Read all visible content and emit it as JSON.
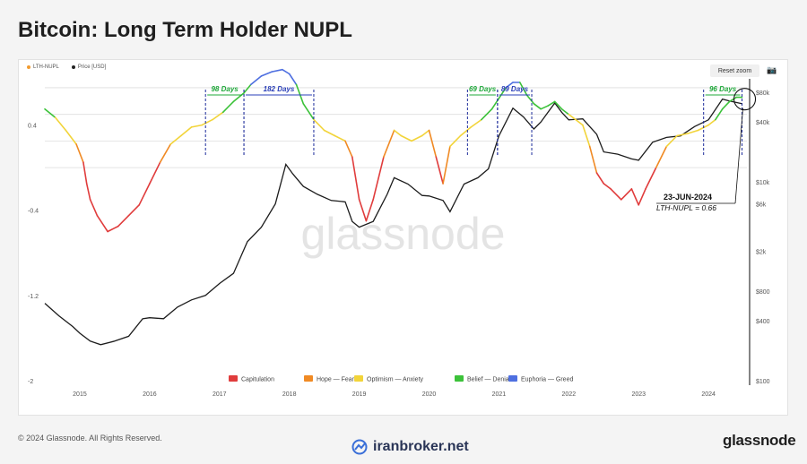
{
  "page": {
    "title": "Bitcoin: Long Term Holder NUPL",
    "copyright": "© 2024 Glassnode. All Rights Reserved.",
    "site": "iranbroker.net",
    "brand": "glassnode",
    "watermark": "glassnode"
  },
  "toolbar": {
    "reset_zoom": "Reset zoom",
    "camera_icon": "camera-icon"
  },
  "chart_data": {
    "type": "line",
    "title": "Bitcoin: Long Term Holder NUPL",
    "legend_top": [
      {
        "name": "LTH-NUPL",
        "color": "#f29b30"
      },
      {
        "name": "Price [USD]",
        "color": "#222222"
      }
    ],
    "x_ticks": [
      "2015",
      "2016",
      "2017",
      "2018",
      "2019",
      "2020",
      "2021",
      "2022",
      "2023",
      "2024"
    ],
    "x_tick_years": [
      2015,
      2016,
      2017,
      2018,
      2019,
      2020,
      2021,
      2022,
      2023,
      2024
    ],
    "x_range": [
      2014.5,
      2024.55
    ],
    "y_left": {
      "ticks": [
        "0.4",
        "-0.4",
        "-1.2",
        "-2"
      ],
      "values": [
        0.4,
        -0.4,
        -1.2,
        -2
      ],
      "range": [
        -2,
        0.8
      ]
    },
    "y_right": {
      "scale": "log",
      "ticks": [
        "$80k",
        "$40k",
        "$10k",
        "$6k",
        "$2k",
        "$800",
        "$400",
        "$100"
      ],
      "values": [
        80000,
        40000,
        10000,
        6000,
        2000,
        800,
        400,
        100
      ],
      "range": [
        100,
        100000
      ]
    },
    "zones": [
      {
        "name": "Capitulation",
        "color": "#e03c3c"
      },
      {
        "name": "Hope — Fear",
        "color": "#f08a24"
      },
      {
        "name": "Optimism — Anxiety",
        "color": "#f2d43a"
      },
      {
        "name": "Belief — Denial",
        "color": "#3cc23a"
      },
      {
        "name": "Euphoria — Greed",
        "color": "#4e6fe0"
      }
    ],
    "zone_thresholds": [
      0,
      0.25,
      0.5,
      0.75
    ],
    "nupl_series": {
      "name": "LTH-NUPL",
      "x": [
        2014.5,
        2014.65,
        2014.8,
        2014.95,
        2015.05,
        2015.1,
        2015.15,
        2015.25,
        2015.4,
        2015.55,
        2015.7,
        2015.85,
        2016.0,
        2016.15,
        2016.3,
        2016.45,
        2016.6,
        2016.75,
        2016.9,
        2017.05,
        2017.2,
        2017.35,
        2017.45,
        2017.6,
        2017.75,
        2017.9,
        2018.0,
        2018.1,
        2018.2,
        2018.35,
        2018.5,
        2018.65,
        2018.8,
        2018.9,
        2019.0,
        2019.1,
        2019.2,
        2019.35,
        2019.5,
        2019.6,
        2019.75,
        2019.9,
        2020.0,
        2020.1,
        2020.2,
        2020.3,
        2020.45,
        2020.6,
        2020.75,
        2020.9,
        2021.0,
        2021.1,
        2021.2,
        2021.3,
        2021.4,
        2021.5,
        2021.6,
        2021.7,
        2021.8,
        2021.9,
        2022.0,
        2022.1,
        2022.2,
        2022.3,
        2022.4,
        2022.5,
        2022.6,
        2022.75,
        2022.9,
        2023.0,
        2023.1,
        2023.25,
        2023.4,
        2023.55,
        2023.7,
        2023.85,
        2024.0,
        2024.1,
        2024.2,
        2024.3,
        2024.4,
        2024.48
      ],
      "y": [
        0.55,
        0.47,
        0.35,
        0.22,
        0.05,
        -0.15,
        -0.3,
        -0.45,
        -0.6,
        -0.55,
        -0.45,
        -0.35,
        -0.15,
        0.05,
        0.22,
        0.3,
        0.38,
        0.4,
        0.45,
        0.52,
        0.62,
        0.7,
        0.78,
        0.86,
        0.9,
        0.92,
        0.88,
        0.78,
        0.6,
        0.45,
        0.35,
        0.3,
        0.25,
        0.1,
        -0.3,
        -0.5,
        -0.3,
        0.1,
        0.35,
        0.3,
        0.25,
        0.3,
        0.35,
        0.1,
        -0.15,
        0.2,
        0.3,
        0.38,
        0.45,
        0.55,
        0.65,
        0.75,
        0.8,
        0.8,
        0.68,
        0.6,
        0.55,
        0.58,
        0.62,
        0.55,
        0.5,
        0.45,
        0.4,
        0.2,
        -0.05,
        -0.15,
        -0.2,
        -0.3,
        -0.2,
        -0.35,
        -0.2,
        0.0,
        0.2,
        0.3,
        0.32,
        0.35,
        0.4,
        0.45,
        0.55,
        0.62,
        0.66,
        0.66
      ]
    },
    "price_series": {
      "name": "Price [USD]",
      "x": [
        2014.5,
        2014.7,
        2014.9,
        2015.0,
        2015.15,
        2015.3,
        2015.5,
        2015.7,
        2015.9,
        2016.0,
        2016.2,
        2016.4,
        2016.6,
        2016.8,
        2017.0,
        2017.2,
        2017.4,
        2017.6,
        2017.8,
        2017.95,
        2018.05,
        2018.2,
        2018.4,
        2018.6,
        2018.8,
        2018.9,
        2019.0,
        2019.2,
        2019.4,
        2019.5,
        2019.7,
        2019.9,
        2020.0,
        2020.2,
        2020.3,
        2020.5,
        2020.7,
        2020.85,
        2021.0,
        2021.2,
        2021.35,
        2021.5,
        2021.6,
        2021.8,
        2021.9,
        2022.0,
        2022.2,
        2022.4,
        2022.5,
        2022.7,
        2022.9,
        2023.0,
        2023.2,
        2023.4,
        2023.6,
        2023.8,
        2024.0,
        2024.2,
        2024.3,
        2024.48
      ],
      "y": [
        600,
        450,
        350,
        300,
        250,
        230,
        250,
        280,
        420,
        430,
        420,
        550,
        650,
        720,
        950,
        1200,
        2500,
        3500,
        6000,
        15000,
        12000,
        9000,
        7500,
        6500,
        6300,
        4000,
        3500,
        4000,
        7500,
        11000,
        9500,
        7300,
        7200,
        6500,
        5000,
        9500,
        11000,
        13500,
        29000,
        55000,
        45000,
        34000,
        40000,
        62000,
        50000,
        42000,
        43000,
        30000,
        20000,
        19000,
        17000,
        16500,
        25000,
        28000,
        29000,
        36000,
        42000,
        68000,
        65000,
        61000
      ]
    },
    "annotations": {
      "spans": [
        {
          "label": "98 Days",
          "start": 2016.8,
          "end": 2017.35,
          "color": "#1fa83a"
        },
        {
          "label": "182 Days",
          "start": 2017.35,
          "end": 2018.35,
          "color": "#2a3fb8"
        },
        {
          "label": "69 Days",
          "start": 2020.55,
          "end": 2020.98,
          "color": "#1fa83a"
        },
        {
          "label": "89 Days",
          "start": 2020.98,
          "end": 2021.47,
          "color": "#2a3fb8"
        },
        {
          "label": "96 Days",
          "start": 2023.93,
          "end": 2024.48,
          "color": "#1fa83a"
        }
      ],
      "date_label": "23-JUN-2024",
      "value_label": "LTH-NUPL = 0.66"
    }
  }
}
